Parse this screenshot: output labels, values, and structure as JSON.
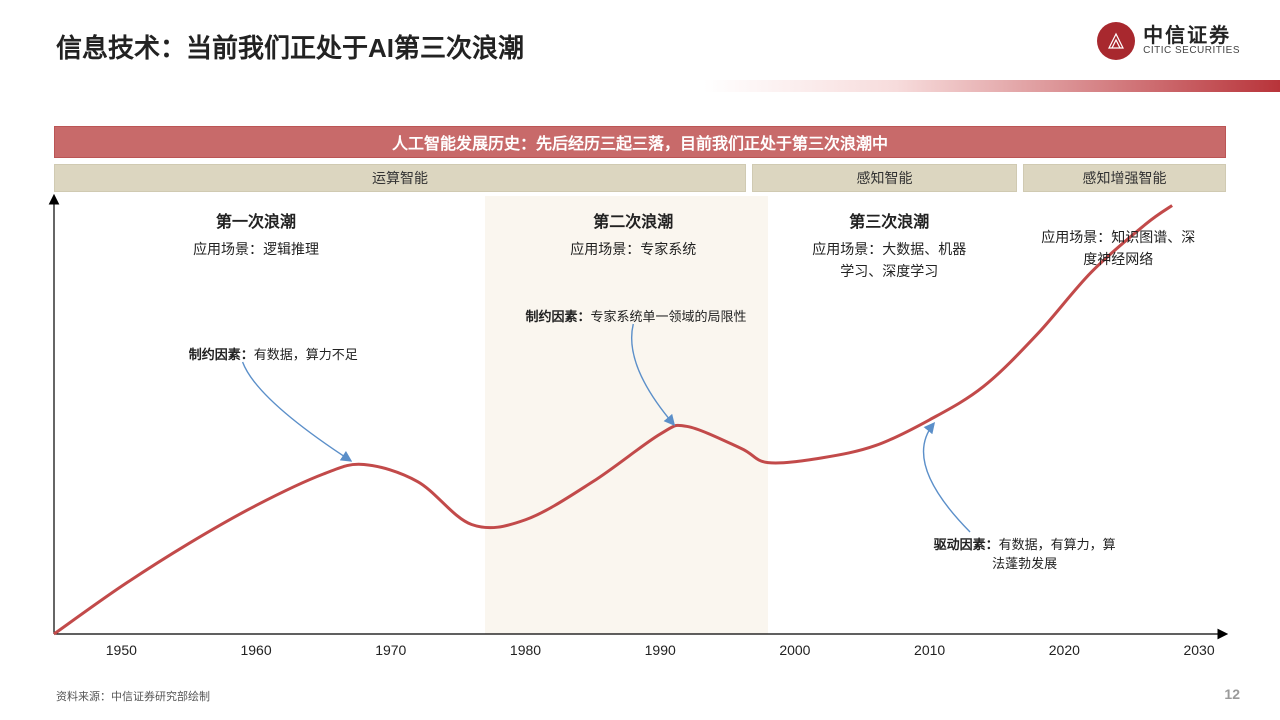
{
  "title": "信息技术：当前我们正处于AI第三次浪潮",
  "logo": {
    "cn": "中信证券",
    "en": "CITIC SECURITIES"
  },
  "banner": "人工智能发展历史：先后经历三起三落，目前我们正处于第三次浪潮中",
  "phases": {
    "p1": "运算智能",
    "p2": "感知智能",
    "p3": "感知增强智能"
  },
  "chart": {
    "type": "line",
    "xDomain": [
      1945,
      2032
    ],
    "ticks": [
      "1950",
      "1960",
      "1970",
      "1980",
      "1990",
      "2000",
      "2010",
      "2020",
      "2030"
    ],
    "lineColor": "#c24a4a",
    "lineWidth": 3,
    "highlightBand": {
      "from": 1977,
      "to": 1998,
      "color": "#faf6ef"
    },
    "arrowColor": "#5b8fc9",
    "curvePoints": [
      [
        1945,
        0
      ],
      [
        1950,
        50
      ],
      [
        1955,
        95
      ],
      [
        1960,
        135
      ],
      [
        1965,
        168
      ],
      [
        1968,
        178
      ],
      [
        1972,
        160
      ],
      [
        1976,
        115
      ],
      [
        1980,
        120
      ],
      [
        1985,
        160
      ],
      [
        1990,
        210
      ],
      [
        1992,
        218
      ],
      [
        1996,
        195
      ],
      [
        1998,
        180
      ],
      [
        2002,
        185
      ],
      [
        2006,
        198
      ],
      [
        2010,
        225
      ],
      [
        2014,
        260
      ],
      [
        2018,
        315
      ],
      [
        2022,
        380
      ],
      [
        2026,
        430
      ],
      [
        2028,
        450
      ]
    ]
  },
  "waves": {
    "w1": {
      "title": "第一次浪潮",
      "scene_label": "应用场景：",
      "scene": "逻辑推理"
    },
    "w2": {
      "title": "第二次浪潮",
      "scene_label": "应用场景：",
      "scene": "专家系统"
    },
    "w3a": {
      "title": "第三次浪潮",
      "scene_label": "应用场景：",
      "scene": "大数据、机器学习、深度学习"
    },
    "w3b": {
      "scene_label": "应用场景：",
      "scene": "知识图谱、深度神经网络"
    }
  },
  "callouts": {
    "c1": {
      "label": "制约因素：",
      "text": "有数据，算力不足"
    },
    "c2": {
      "label": "制约因素：",
      "text": "专家系统单一领域的局限性"
    },
    "c3": {
      "label": "驱动因素：",
      "text": "有数据，有算力，算法蓬勃发展"
    }
  },
  "source": "资料来源：中信证券研究部绘制",
  "pageNumber": "12"
}
